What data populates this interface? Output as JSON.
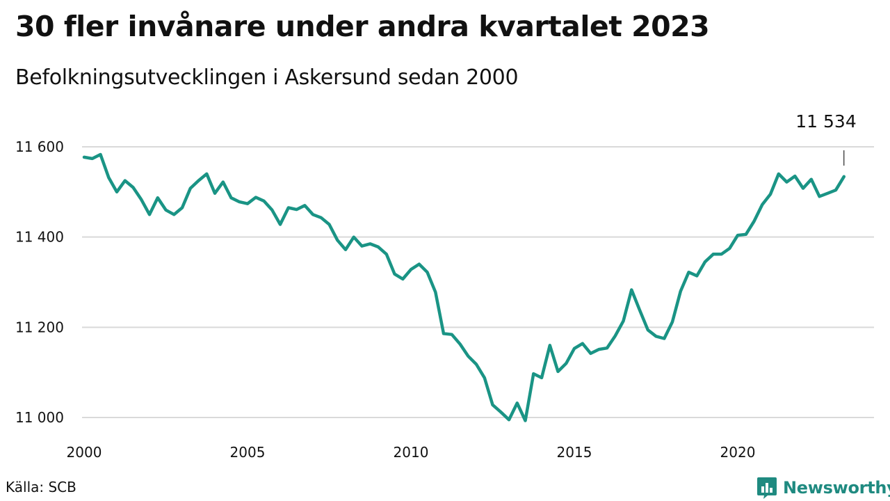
{
  "header": {
    "title": "30 fler invånare under andra kvartalet 2023",
    "subtitle": "Befolkningsutvecklingen i Askersund sedan 2000"
  },
  "footer": {
    "source": "Källa: SCB",
    "brand": "Newsworthy",
    "brand_icon": "bar-chart-logo-icon",
    "brand_color": "#1f8a80"
  },
  "chart_data": {
    "type": "line",
    "title": "30 fler invånare under andra kvartalet 2023",
    "subtitle": "Befolkningsutvecklingen i Askersund sedan 2000",
    "xlabel": "",
    "ylabel": "",
    "xlim": [
      2000,
      2024.4
    ],
    "ylim": [
      10990,
      11620
    ],
    "grid": "horizontal",
    "line_color": "#1a9485",
    "x_ticks": [
      {
        "value": 2000,
        "label": "2000"
      },
      {
        "value": 2005,
        "label": "2005"
      },
      {
        "value": 2010,
        "label": "2010"
      },
      {
        "value": 2015,
        "label": "2015"
      },
      {
        "value": 2020,
        "label": "2020"
      }
    ],
    "y_ticks": [
      {
        "value": 11000,
        "label": "11 000"
      },
      {
        "value": 11200,
        "label": "11 200"
      },
      {
        "value": 11400,
        "label": "11 400"
      },
      {
        "value": 11600,
        "label": "11 600"
      }
    ],
    "annotation": {
      "x": 2023.25,
      "y": 11534,
      "label": "11 534"
    },
    "series": [
      {
        "x_start": 2000.0,
        "x_step": 0.25,
        "values": [
          11577,
          11574,
          11583,
          11532,
          11500,
          11525,
          11510,
          11483,
          11450,
          11487,
          11460,
          11450,
          11465,
          11508,
          11525,
          11540,
          11497,
          11522,
          11487,
          11478,
          11474,
          11488,
          11480,
          11460,
          11428,
          11465,
          11461,
          11470,
          11450,
          11443,
          11428,
          11393,
          11372,
          11400,
          11380,
          11385,
          11378,
          11362,
          11318,
          11307,
          11328,
          11340,
          11322,
          11278,
          11186,
          11184,
          11163,
          11136,
          11118,
          11088,
          11028,
          11012,
          10995,
          11032,
          10993,
          11097,
          11088,
          11160,
          11102,
          11120,
          11153,
          11164,
          11142,
          11151,
          11154,
          11181,
          11214,
          11283,
          11238,
          11194,
          11180,
          11175,
          11212,
          11280,
          11322,
          11314,
          11345,
          11362,
          11362,
          11375,
          11404,
          11406,
          11435,
          11472,
          11495,
          11540,
          11522,
          11535,
          11508,
          11528,
          11490,
          11497,
          11504,
          11534
        ]
      }
    ]
  }
}
